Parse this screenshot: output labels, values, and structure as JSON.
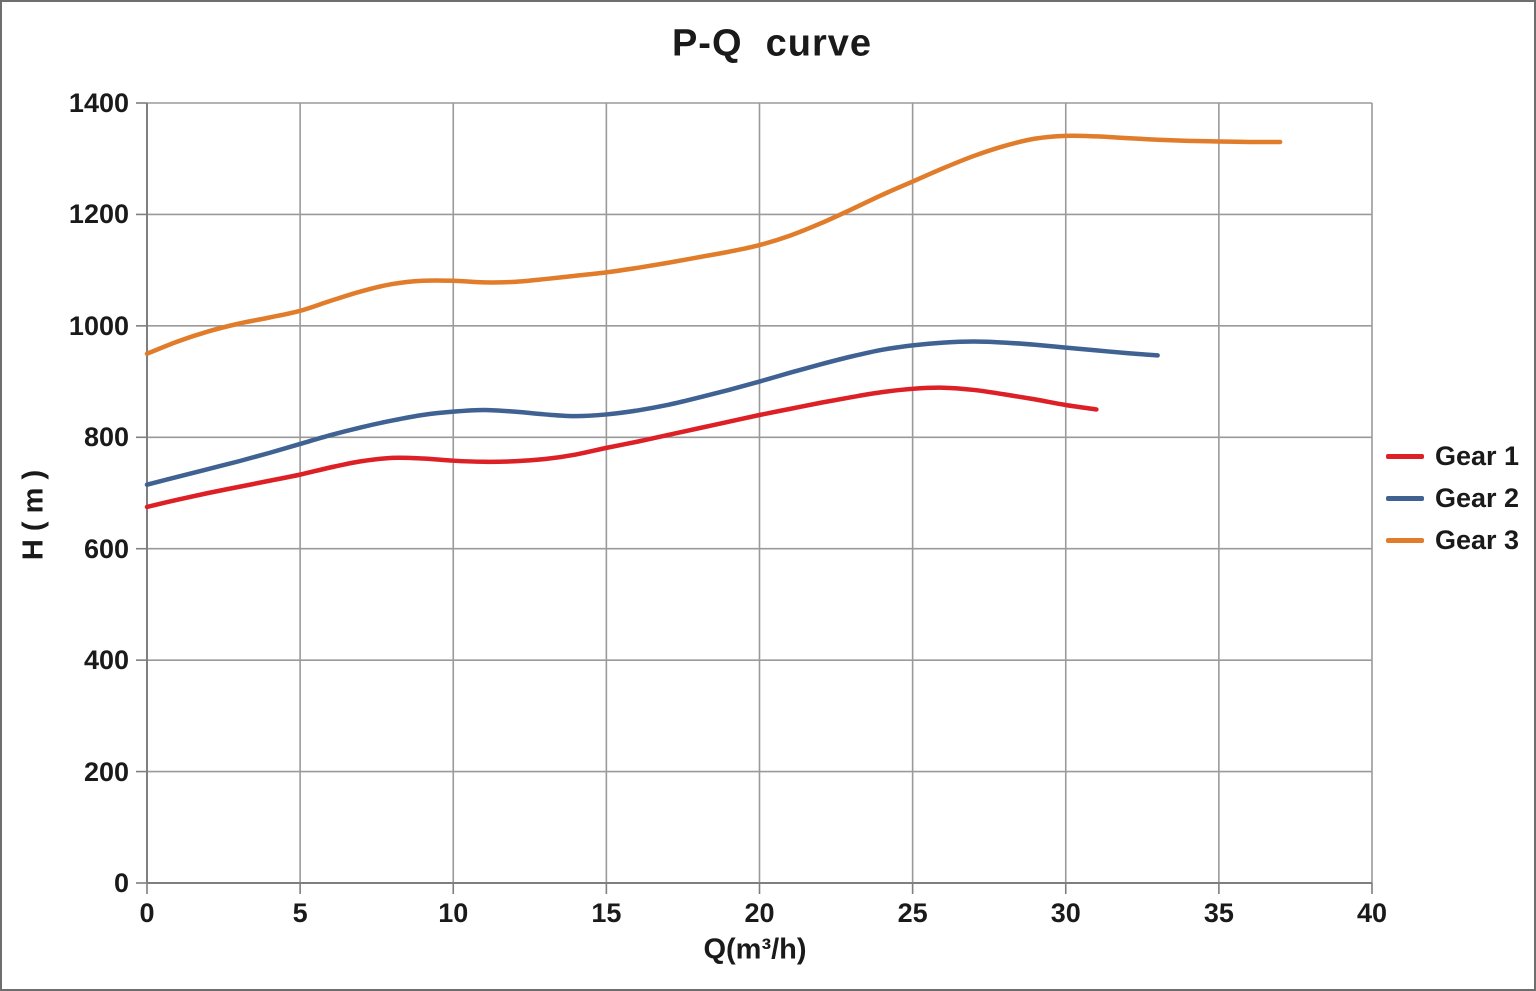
{
  "window": {
    "background": "#FFFFFF",
    "border_color": "#6E6E6E"
  },
  "chart_data": {
    "type": "line",
    "title": "P-Q  curve",
    "xlabel": "Q(m³/h)",
    "ylabel": "H ( m )",
    "xlim": [
      0,
      40
    ],
    "ylim": [
      0,
      1400
    ],
    "x_ticks": [
      0,
      5,
      10,
      15,
      20,
      25,
      30,
      35,
      40
    ],
    "y_ticks": [
      0,
      200,
      400,
      600,
      800,
      1000,
      1200,
      1400
    ],
    "grid": true,
    "legend_position": "right",
    "colors": {
      "grid": "#9a9a9a",
      "axis": "#7f7f7f",
      "text": "#1a1a1a"
    },
    "series": [
      {
        "name": "Gear 1",
        "color": "#dd2025",
        "x": [
          0,
          1,
          2,
          3,
          4,
          5,
          6,
          7,
          8,
          9,
          10,
          11,
          12,
          13,
          14,
          15,
          16,
          17,
          18,
          19,
          20,
          21,
          22,
          23,
          24,
          25,
          26,
          27,
          28,
          29,
          30,
          31
        ],
        "y": [
          675,
          688,
          700,
          711,
          722,
          733,
          746,
          757,
          763,
          762,
          758,
          756,
          757,
          761,
          769,
          781,
          792,
          804,
          816,
          828,
          840,
          851,
          862,
          872,
          881,
          887,
          889,
          885,
          877,
          868,
          858,
          850
        ]
      },
      {
        "name": "Gear 2",
        "color": "#3f6293",
        "x": [
          0,
          1,
          2,
          3,
          4,
          5,
          6,
          7,
          8,
          9,
          10,
          11,
          12,
          13,
          14,
          15,
          16,
          17,
          18,
          19,
          20,
          21,
          22,
          23,
          24,
          25,
          26,
          27,
          28,
          29,
          30,
          31,
          32,
          33
        ],
        "y": [
          715,
          729,
          743,
          757,
          772,
          788,
          804,
          818,
          830,
          840,
          846,
          849,
          846,
          841,
          838,
          841,
          848,
          858,
          871,
          885,
          900,
          916,
          931,
          945,
          957,
          965,
          970,
          972,
          970,
          966,
          961,
          956,
          951,
          947
        ]
      },
      {
        "name": "Gear 3",
        "color": "#e07c2a",
        "x": [
          0,
          1,
          2,
          3,
          4,
          5,
          6,
          7,
          8,
          9,
          10,
          11,
          12,
          13,
          14,
          15,
          16,
          17,
          18,
          19,
          20,
          21,
          22,
          23,
          24,
          25,
          26,
          27,
          28,
          29,
          30,
          31,
          32,
          33,
          34,
          35,
          36,
          37
        ],
        "y": [
          950,
          972,
          990,
          1004,
          1015,
          1027,
          1045,
          1062,
          1075,
          1081,
          1081,
          1078,
          1079,
          1084,
          1090,
          1096,
          1104,
          1113,
          1123,
          1133,
          1145,
          1162,
          1184,
          1209,
          1235,
          1259,
          1283,
          1305,
          1323,
          1336,
          1341,
          1340,
          1337,
          1334,
          1332,
          1331,
          1330,
          1330
        ]
      }
    ]
  }
}
